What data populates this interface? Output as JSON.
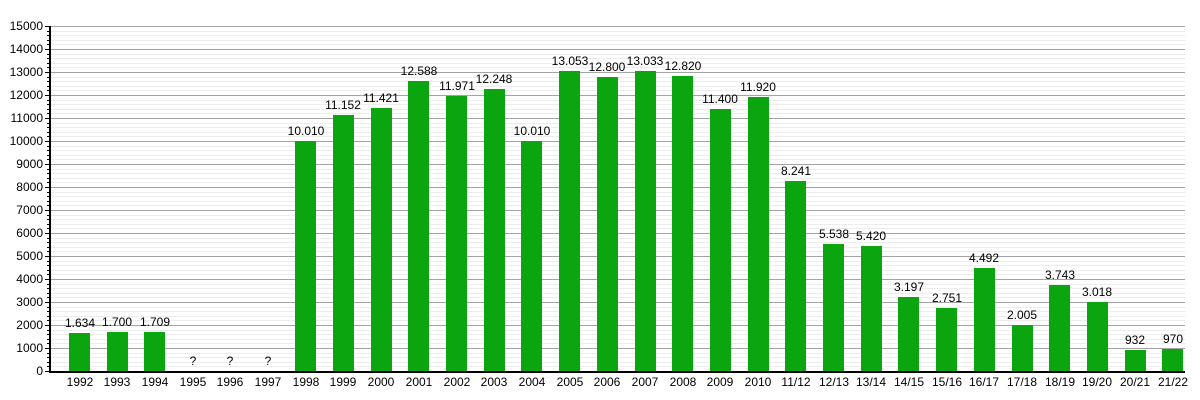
{
  "chart_data": {
    "type": "bar",
    "title": "",
    "xlabel": "",
    "ylabel": "",
    "categories": [
      "1992",
      "1993",
      "1994",
      "1995",
      "1996",
      "1997",
      "1998",
      "1999",
      "2000",
      "2001",
      "2002",
      "2003",
      "2004",
      "2005",
      "2006",
      "2007",
      "2008",
      "2009",
      "2010",
      "11/12",
      "12/13",
      "13/14",
      "14/15",
      "15/16",
      "16/17",
      "17/18",
      "18/19",
      "19/20",
      "20/21",
      "21/22"
    ],
    "values": [
      1634,
      1700,
      1709,
      null,
      null,
      null,
      10010,
      11152,
      11421,
      12588,
      11971,
      12248,
      10010,
      13053,
      12800,
      13033,
      12820,
      11400,
      11920,
      8241,
      5538,
      5420,
      3197,
      2751,
      4492,
      2005,
      3743,
      3018,
      932,
      970
    ],
    "value_labels": [
      "1.634",
      "1.700",
      "1.709",
      "?",
      "?",
      "?",
      "10.010",
      "11.152",
      "11.421",
      "12.588",
      "11.971",
      "12.248",
      "10.010",
      "13.053",
      "12.800",
      "13.033",
      "12.820",
      "11.400",
      "11.920",
      "8.241",
      "5.538",
      "5.420",
      "3.197",
      "2.751",
      "4.492",
      "2.005",
      "3.743",
      "3.018",
      "932",
      "970"
    ],
    "ylim": [
      0,
      15000
    ],
    "y_major_step": 1000,
    "y_minor_step": 200,
    "y_tick_labels": [
      "0",
      "1000",
      "2000",
      "3000",
      "4000",
      "5000",
      "6000",
      "7000",
      "8000",
      "9000",
      "10000",
      "11000",
      "12000",
      "13000",
      "14000",
      "15000"
    ],
    "grid": true,
    "legend": false,
    "colors": {
      "bar": "#0aa50f",
      "grid_major": "#a3a3a3",
      "grid_minor": "#ededed",
      "axis": "#000000",
      "label": "#000000",
      "background": "#ffffff"
    }
  }
}
